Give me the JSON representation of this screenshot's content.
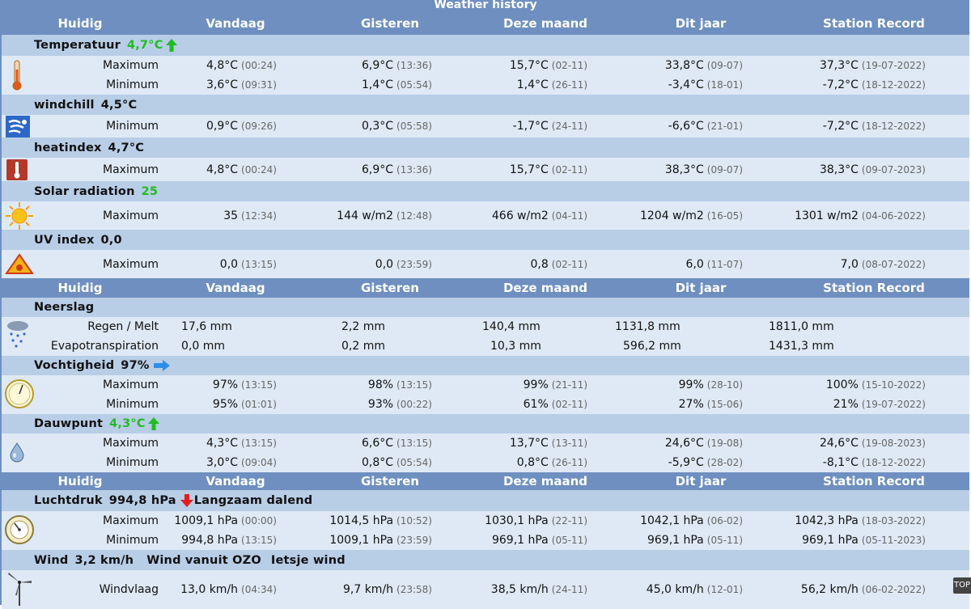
{
  "title": "Weather history",
  "headers": [
    "Huidig",
    "Vandaag",
    "Gisteren",
    "Deze maand",
    "Dit jaar",
    "Station Record"
  ],
  "temperature": {
    "label": "Temperatuur",
    "current": "4,7°C",
    "max": {
      "label": "Maximum",
      "v": [
        [
          "4,8°C",
          "(00:24)"
        ],
        [
          "6,9°C",
          "(13:36)"
        ],
        [
          "15,7°C",
          "(02-11)"
        ],
        [
          "33,8°C",
          "(09-07)"
        ],
        [
          "37,3°C",
          "(19-07-2022)"
        ]
      ]
    },
    "min": {
      "label": "Minimum",
      "v": [
        [
          "3,6°C",
          "(09:31)"
        ],
        [
          "1,4°C",
          "(05:54)"
        ],
        [
          "1,4°C",
          "(26-11)"
        ],
        [
          "-3,4°C",
          "(18-01)"
        ],
        [
          "-7,2°C",
          "(18-12-2022)"
        ]
      ]
    }
  },
  "windchill": {
    "label": "windchill",
    "current": "4,5°C",
    "min": {
      "label": "Minimum",
      "v": [
        [
          "0,9°C",
          "(09:26)"
        ],
        [
          "0,3°C",
          "(05:58)"
        ],
        [
          "-1,7°C",
          "(24-11)"
        ],
        [
          "-6,6°C",
          "(21-01)"
        ],
        [
          "-7,2°C",
          "(18-12-2022)"
        ]
      ]
    }
  },
  "heatindex": {
    "label": "heatindex",
    "current": "4,7°C",
    "max": {
      "label": "Maximum",
      "v": [
        [
          "4,8°C",
          "(00:24)"
        ],
        [
          "6,9°C",
          "(13:36)"
        ],
        [
          "15,7°C",
          "(02-11)"
        ],
        [
          "38,3°C",
          "(09-07)"
        ],
        [
          "38,3°C",
          "(09-07-2023)"
        ]
      ]
    }
  },
  "solar": {
    "label": "Solar radiation",
    "current": "25",
    "max": {
      "label": "Maximum",
      "v": [
        [
          "35",
          "(12:34)"
        ],
        [
          "144 w/m2",
          "(12:48)"
        ],
        [
          "466 w/m2",
          "(04-11)"
        ],
        [
          "1204 w/m2",
          "(16-05)"
        ],
        [
          "1301 w/m2",
          "(04-06-2022)"
        ]
      ]
    }
  },
  "uv": {
    "label": "UV index",
    "current": "0,0",
    "max": {
      "label": "Maximum",
      "v": [
        [
          "0,0",
          "(13:15)"
        ],
        [
          "0,0",
          "(23:59)"
        ],
        [
          "0,8",
          "(02-11)"
        ],
        [
          "6,0",
          "(11-07)"
        ],
        [
          "7,0",
          "(08-07-2022)"
        ]
      ]
    }
  },
  "rain": {
    "label": "Neerslag",
    "rows": [
      {
        "label": "Regen / Melt",
        "v": [
          "17,6 mm",
          "2,2 mm",
          "140,4 mm",
          "1131,8 mm",
          "1811,0 mm"
        ]
      },
      {
        "label": "Evapotranspiration",
        "v": [
          "0,0 mm",
          "0,2 mm",
          "10,3 mm",
          "596,2 mm",
          "1431,3 mm"
        ]
      }
    ]
  },
  "humidity": {
    "label": "Vochtigheid",
    "current": "97%",
    "max": {
      "label": "Maximum",
      "v": [
        [
          "97%",
          "(13:15)"
        ],
        [
          "98%",
          "(13:15)"
        ],
        [
          "99%",
          "(21-11)"
        ],
        [
          "99%",
          "(28-10)"
        ],
        [
          "100%",
          "(15-10-2022)"
        ]
      ]
    },
    "min": {
      "label": "Minimum",
      "v": [
        [
          "95%",
          "(01:01)"
        ],
        [
          "93%",
          "(00:22)"
        ],
        [
          "61%",
          "(02-11)"
        ],
        [
          "27%",
          "(15-06)"
        ],
        [
          "21%",
          "(19-07-2022)"
        ]
      ]
    }
  },
  "dewpoint": {
    "label": "Dauwpunt",
    "current": "4,3°C",
    "max": {
      "label": "Maximum",
      "v": [
        [
          "4,3°C",
          "(13:15)"
        ],
        [
          "6,6°C",
          "(13:15)"
        ],
        [
          "13,7°C",
          "(13-11)"
        ],
        [
          "24,6°C",
          "(19-08)"
        ],
        [
          "24,6°C",
          "(19-08-2023)"
        ]
      ]
    },
    "min": {
      "label": "Minimum",
      "v": [
        [
          "3,0°C",
          "(09:04)"
        ],
        [
          "0,8°C",
          "(05:54)"
        ],
        [
          "0,8°C",
          "(26-11)"
        ],
        [
          "-5,9°C",
          "(28-02)"
        ],
        [
          "-8,1°C",
          "(18-12-2022)"
        ]
      ]
    }
  },
  "pressure": {
    "label": "Luchtdruk",
    "current": "994,8 hPa",
    "trend": "Langzaam dalend",
    "max": {
      "label": "Maximum",
      "v": [
        [
          "1009,1 hPa",
          "(00:00)"
        ],
        [
          "1014,5 hPa",
          "(10:52)"
        ],
        [
          "1030,1 hPa",
          "(22-11)"
        ],
        [
          "1042,1 hPa",
          "(06-02)"
        ],
        [
          "1042,3 hPa",
          "(18-03-2022)"
        ]
      ]
    },
    "min": {
      "label": "Minimum",
      "v": [
        [
          "994,8 hPa",
          "(13:15)"
        ],
        [
          "1009,1 hPa",
          "(23:59)"
        ],
        [
          "969,1 hPa",
          "(05-11)"
        ],
        [
          "969,1 hPa",
          "(05-11)"
        ],
        [
          "969,1 hPa",
          "(05-11-2023)"
        ]
      ]
    }
  },
  "wind": {
    "label": "Wind",
    "current": "3,2 km/h",
    "dir": "Wind vanuit OZO",
    "desc": "Ietsje wind",
    "gust": {
      "label": "Windvlaag",
      "v": [
        [
          "13,0 km/h",
          "(04:34)"
        ],
        [
          "9,7 km/h",
          "(23:58)"
        ],
        [
          "38,5 km/h",
          "(24-11)"
        ],
        [
          "45,0 km/h",
          "(12-01)"
        ],
        [
          "56,2 km/h",
          "(06-02-2022)"
        ]
      ]
    }
  },
  "top_button": "TOP",
  "icons": [
    "thermometer-icon",
    "windchill-icon",
    "heatindex-icon",
    "sun-icon",
    "uv-icon",
    "rain-icon",
    "hygrometer-icon",
    "droplet-icon",
    "barometer-icon",
    "windmill-icon"
  ],
  "colors": {
    "header": "#6e8fc0",
    "section": "#b8cde6",
    "row": "#dfe9f5",
    "current_green": "#22bb22",
    "trend_red": "#e02020",
    "trend_blue": "#2f8fe8"
  }
}
